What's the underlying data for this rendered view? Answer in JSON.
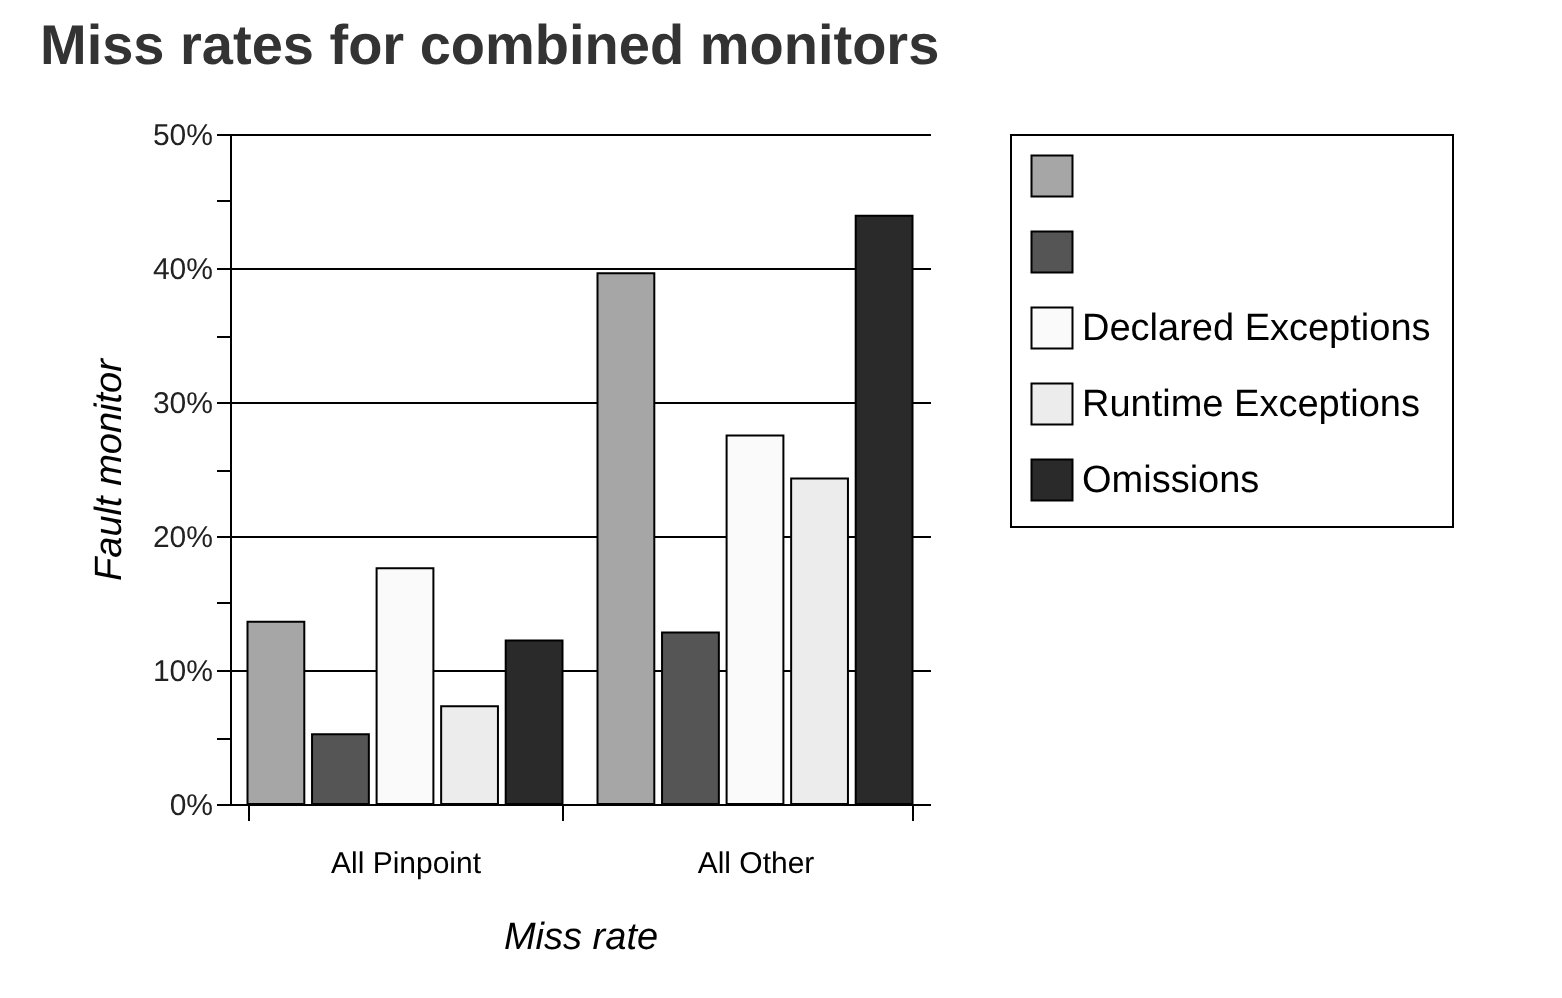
{
  "chart_data": {
    "type": "bar",
    "title": "Miss rates for combined monitors",
    "xlabel": "Miss rate",
    "ylabel": "Fault monitor",
    "categories": [
      "All Pinpoint",
      "All Other"
    ],
    "series": [
      {
        "color": "#a6a6a6",
        "values": [
          13.6,
          39.6
        ]
      },
      {
        "color": "#555555",
        "values": [
          5.2,
          12.8
        ]
      },
      {
        "name": "Declared Exceptions",
        "color": "#fafafa",
        "values": [
          17.6,
          27.5
        ]
      },
      {
        "name": "Runtime Exceptions",
        "color": "#ececec",
        "values": [
          7.3,
          24.3
        ]
      },
      {
        "name": "Omissions",
        "color": "#2a2a2a",
        "values": [
          12.2,
          43.9
        ]
      }
    ],
    "ylim": [
      0,
      50
    ],
    "yticks": [
      {
        "value": 0,
        "label": "0%"
      },
      {
        "value": 5,
        "label": null
      },
      {
        "value": 10,
        "label": "10%"
      },
      {
        "value": 15,
        "label": null
      },
      {
        "value": 20,
        "label": "20%"
      },
      {
        "value": 25,
        "label": null
      },
      {
        "value": 30,
        "label": "30%"
      },
      {
        "value": 35,
        "label": null
      },
      {
        "value": 40,
        "label": "40%"
      },
      {
        "value": 45,
        "label": null
      },
      {
        "value": 50,
        "label": "50%"
      }
    ],
    "grid": "y",
    "legend": "right"
  }
}
